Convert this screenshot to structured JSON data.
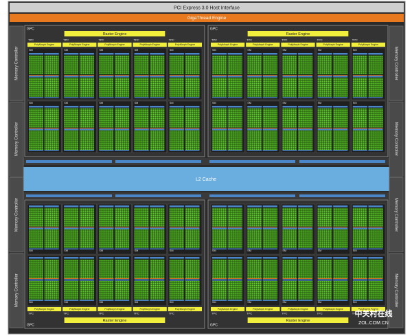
{
  "header": {
    "host_interface": "PCI Express 3.0 Host Interface",
    "gigathread": "GigaThread Engine"
  },
  "memory_controllers": {
    "left": [
      "Memory Controller",
      "Memory Controller",
      "Memory Controller",
      "Memory Controller"
    ],
    "right": [
      "Memory Controller",
      "Memory Controller",
      "Memory Controller",
      "Memory Controller"
    ]
  },
  "l2_cache": "L2 Cache",
  "gpcs": [
    {
      "label": "GPC",
      "raster_engine": "Raster Engine",
      "tpcs": [
        {
          "label": "TPC",
          "polymorph": "PolyMorph Engine",
          "sms": [
            "SM",
            "SM"
          ]
        },
        {
          "label": "TPC",
          "polymorph": "PolyMorph Engine",
          "sms": [
            "SM",
            "SM"
          ]
        },
        {
          "label": "TPC",
          "polymorph": "PolyMorph Engine",
          "sms": [
            "SM",
            "SM"
          ]
        },
        {
          "label": "TPC",
          "polymorph": "PolyMorph Engine",
          "sms": [
            "SM",
            "SM"
          ]
        },
        {
          "label": "TPC",
          "polymorph": "PolyMorph Engine",
          "sms": [
            "SM",
            "SM"
          ]
        }
      ]
    },
    {
      "label": "GPC",
      "raster_engine": "Raster Engine",
      "tpcs": [
        {
          "label": "TPC",
          "polymorph": "PolyMorph Engine",
          "sms": [
            "SM",
            "SM"
          ]
        },
        {
          "label": "TPC",
          "polymorph": "PolyMorph Engine",
          "sms": [
            "SM",
            "SM"
          ]
        },
        {
          "label": "TPC",
          "polymorph": "PolyMorph Engine",
          "sms": [
            "SM",
            "SM"
          ]
        },
        {
          "label": "TPC",
          "polymorph": "PolyMorph Engine",
          "sms": [
            "SM",
            "SM"
          ]
        },
        {
          "label": "TPC",
          "polymorph": "PolyMorph Engine",
          "sms": [
            "SM",
            "SM"
          ]
        }
      ]
    },
    {
      "label": "GPC",
      "raster_engine": "Raster Engine",
      "tpcs": [
        {
          "label": "TPC",
          "polymorph": "PolyMorph Engine",
          "sms": [
            "SM",
            "SM"
          ]
        },
        {
          "label": "TPC",
          "polymorph": "PolyMorph Engine",
          "sms": [
            "SM",
            "SM"
          ]
        },
        {
          "label": "TPC",
          "polymorph": "PolyMorph Engine",
          "sms": [
            "SM",
            "SM"
          ]
        },
        {
          "label": "TPC",
          "polymorph": "PolyMorph Engine",
          "sms": [
            "SM",
            "SM"
          ]
        },
        {
          "label": "TPC",
          "polymorph": "PolyMorph Engine",
          "sms": [
            "SM",
            "SM"
          ]
        }
      ]
    },
    {
      "label": "GPC",
      "raster_engine": "Raster Engine",
      "tpcs": [
        {
          "label": "TPC",
          "polymorph": "PolyMorph Engine",
          "sms": [
            "SM",
            "SM"
          ]
        },
        {
          "label": "TPC",
          "polymorph": "PolyMorph Engine",
          "sms": [
            "SM",
            "SM"
          ]
        },
        {
          "label": "TPC",
          "polymorph": "PolyMorph Engine",
          "sms": [
            "SM",
            "SM"
          ]
        },
        {
          "label": "TPC",
          "polymorph": "PolyMorph Engine",
          "sms": [
            "SM",
            "SM"
          ]
        },
        {
          "label": "TPC",
          "polymorph": "PolyMorph Engine",
          "sms": [
            "SM",
            "SM"
          ]
        }
      ]
    }
  ],
  "watermark": {
    "brand": "中关村在线",
    "site": "ZOL.COM.CN"
  }
}
